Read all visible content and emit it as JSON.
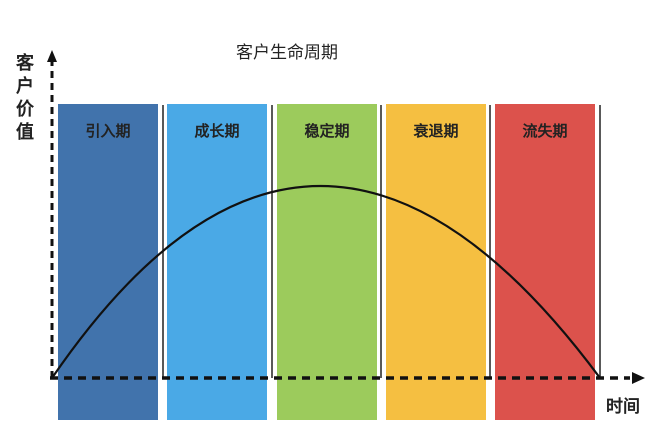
{
  "title": "客户生命周期",
  "y_axis_label": "客户价值",
  "x_axis_label": "时间",
  "stages": [
    {
      "label": "引入期",
      "color": "#4173ac"
    },
    {
      "label": "成长期",
      "color": "#4aa9e6"
    },
    {
      "label": "稳定期",
      "color": "#9ccb5c"
    },
    {
      "label": "衰退期",
      "color": "#f5bf41"
    },
    {
      "label": "流失期",
      "color": "#dc524c"
    }
  ]
}
